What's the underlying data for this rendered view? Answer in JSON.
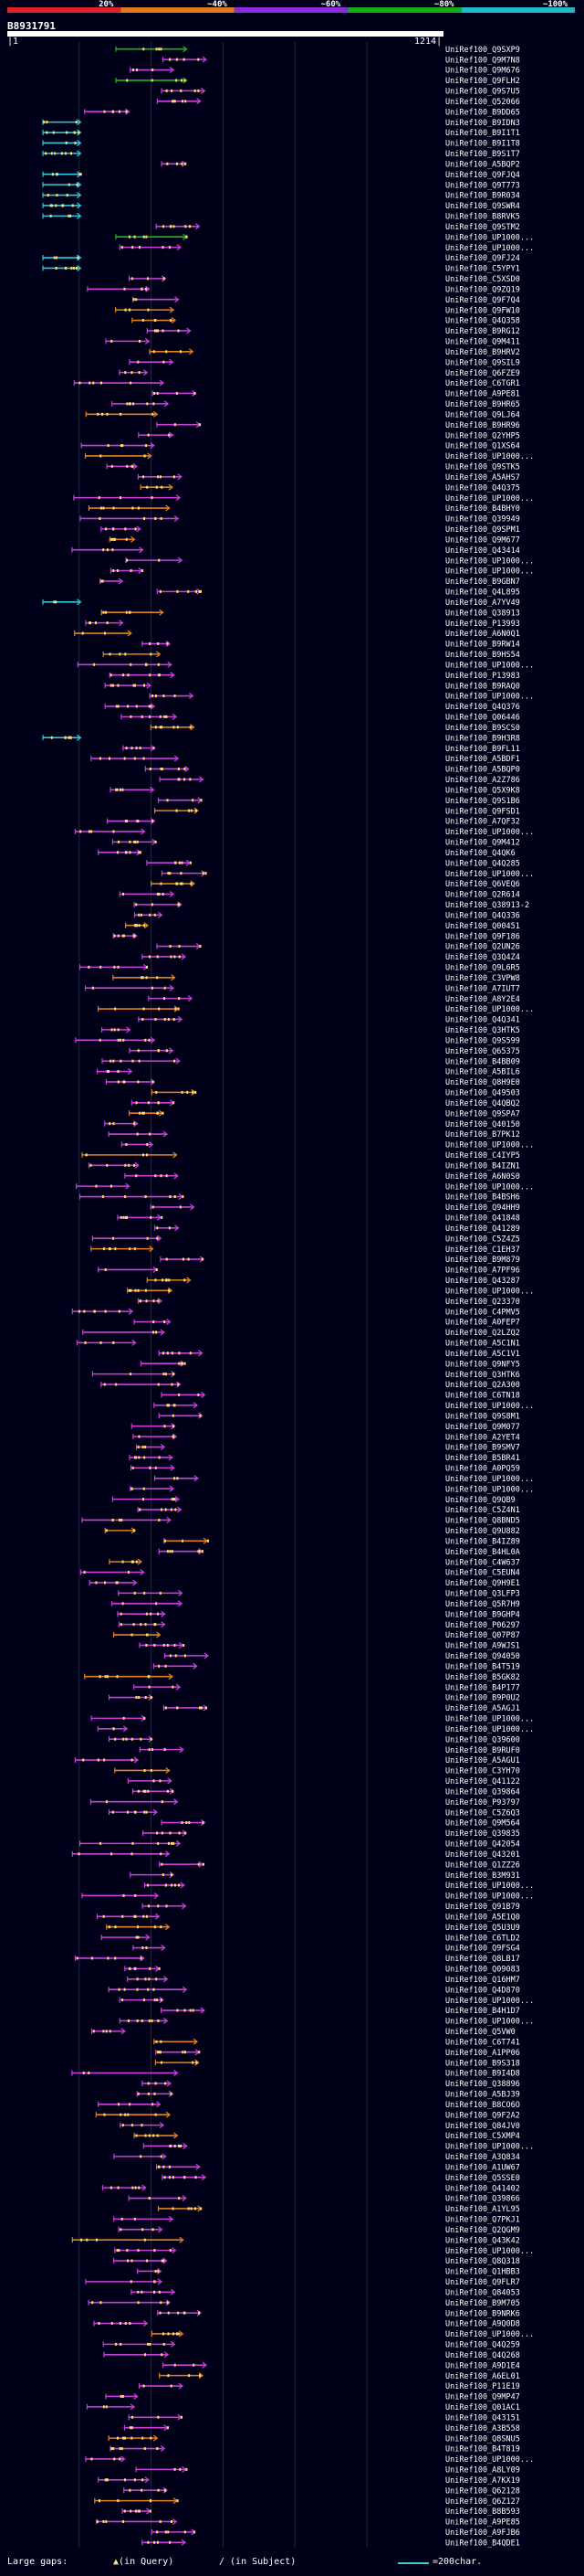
{
  "legend": {
    "ticks": [
      "20%",
      "~40%",
      "~60%",
      "~80%",
      "~100%"
    ],
    "colors": [
      "#e0202a",
      "#e07820",
      "#8a2be2",
      "#18a818",
      "#20b8c8"
    ]
  },
  "query": {
    "id": "B8931791",
    "start": "1",
    "end": "1214"
  },
  "footer": {
    "gap_label": "Large gaps:",
    "gap_query": "(in Query)",
    "gap_subject": "/ (in Subject)",
    "scale_label": "=200char."
  },
  "chart_data": {
    "type": "alignment-overview",
    "title": "B8931791",
    "query_length": 1214,
    "x_range": [
      1,
      1214
    ],
    "hits": [
      "UniRef100_Q9SXP9",
      "UniRef100_Q9M7N8",
      "UniRef100_Q9M676",
      "UniRef100_Q9FLH2",
      "UniRef100_Q9S7U5",
      "UniRef100_Q52066",
      "UniRef100_B9DD65",
      "UniRef100_B9IDN3",
      "UniRef100_B9I1T1",
      "UniRef100_B9I1T8",
      "UniRef100_B9S1T7",
      "UniRef100_A5BQP2",
      "UniRef100_Q9FJQ4",
      "UniRef100_Q9T773",
      "UniRef100_B9R034",
      "UniRef100_Q9SWR4",
      "UniRef100_B8RVK5",
      "UniRef100_Q9STM2",
      "UniRef100_UP1000...",
      "UniRef100_UP1000...",
      "UniRef100_Q9FJ24",
      "UniRef100_C5YPY1",
      "UniRef100_C5XSD0",
      "UniRef100_Q9ZQ19",
      "UniRef100_Q9F7Q4",
      "UniRef100_Q9FW10",
      "UniRef100_Q4Q358",
      "UniRef100_B9RG12",
      "UniRef100_Q9M411",
      "UniRef100_B9HRV2",
      "UniRef100_Q9SIL9",
      "UniRef100_Q6FZE9",
      "UniRef100_C6TGR1",
      "UniRef100_A9PE81",
      "UniRef100_B9HR65",
      "UniRef100_Q9LJ64",
      "UniRef100_B9HR96",
      "UniRef100_Q2YHP5",
      "UniRef100_Q1XS64",
      "UniRef100_UP1000...",
      "UniRef100_Q9STK5",
      "UniRef100_A5AHS7",
      "UniRef100_Q4Q375",
      "UniRef100_UP1000...",
      "UniRef100_B4BHY0",
      "UniRef100_Q39949",
      "UniRef100_Q9SPM1",
      "UniRef100_Q9M677",
      "UniRef100_Q43414",
      "UniRef100_UP1000...",
      "UniRef100_UP1000...",
      "UniRef100_B9GBN7",
      "UniRef100_Q4L895",
      "UniRef100_A7YV49",
      "UniRef100_Q38913",
      "UniRef100_P13993",
      "UniRef100_A6N0Q1",
      "UniRef100_B9RW14",
      "UniRef100_B9HS54",
      "UniRef100_UP1000...",
      "UniRef100_P13983",
      "UniRef100_B9RAQ0",
      "UniRef100_UP1000...",
      "UniRef100_Q4Q376",
      "UniRef100_Q06446",
      "UniRef100_B9SCS0",
      "UniRef100_B9H3R8",
      "UniRef100_B9FL11",
      "UniRef100_A5BDF1",
      "UniRef100_A5BQP0",
      "UniRef100_A2Z786",
      "UniRef100_Q5X9K8",
      "UniRef100_Q9S1B6",
      "UniRef100_Q9FSD1",
      "UniRef100_A7QF32",
      "UniRef100_UP1000...",
      "UniRef100_Q9M412",
      "UniRef100_Q4QK6",
      "UniRef100_Q4Q285",
      "UniRef100_UP1000...",
      "UniRef100_Q6VEQ6",
      "UniRef100_Q2R614",
      "UniRef100_Q38913-2",
      "UniRef100_Q4Q336",
      "UniRef100_Q00451",
      "UniRef100_Q9F186",
      "UniRef100_Q2UN26",
      "UniRef100_Q3Q4Z4",
      "UniRef100_Q9L6R5",
      "UniRef100_C3VPW8",
      "UniRef100_A7IUT7",
      "UniRef100_A8Y2E4",
      "UniRef100_UP1000...",
      "UniRef100_Q4Q341",
      "UniRef100_Q3HTK5",
      "UniRef100_Q9S599",
      "UniRef100_Q65375",
      "UniRef100_B4BB09",
      "UniRef100_A5BIL6",
      "UniRef100_Q8H9E0",
      "UniRef100_Q49503",
      "UniRef100_Q4QBQ2",
      "UniRef100_Q9SPA7",
      "UniRef100_Q40150",
      "UniRef100_B7PK12",
      "UniRef100_UP1000...",
      "UniRef100_C4IYP5",
      "UniRef100_B4IZN1",
      "UniRef100_A6N0S0",
      "UniRef100_UP1000...",
      "UniRef100_B4BSH6",
      "UniRef100_Q94HH9",
      "UniRef100_Q41848",
      "UniRef100_Q41289",
      "UniRef100_C5Z4Z5",
      "UniRef100_C1EH37",
      "UniRef100_B9M879",
      "UniRef100_A7PF96",
      "UniRef100_Q43287",
      "UniRef100_UP1000...",
      "UniRef100_Q23370",
      "UniRef100_C4PMV5",
      "UniRef100_A0FEP7",
      "UniRef100_Q2LZQ2",
      "UniRef100_A5C1N1",
      "UniRef100_A5C1V1",
      "UniRef100_Q9NFY5",
      "UniRef100_Q3HTK6",
      "UniRef100_Q2A300",
      "UniRef100_C6TN18",
      "UniRef100_UP1000...",
      "UniRef100_Q9S8M1",
      "UniRef100_Q9M077",
      "UniRef100_A2YET4",
      "UniRef100_B9SMV7",
      "UniRef100_B5BR41",
      "UniRef100_A0PQ59",
      "UniRef100_UP1000...",
      "UniRef100_UP1000...",
      "UniRef100_Q9QB9",
      "UniRef100_C5Z4N1",
      "UniRef100_Q8BND5",
      "UniRef100_Q9U882",
      "UniRef100_B4IZ89",
      "UniRef100_B4HL0A",
      "UniRef100_C4W637",
      "UniRef100_C5EUN4",
      "UniRef100_Q9H9E1",
      "UniRef100_Q3LFP3",
      "UniRef100_Q5R7H9",
      "UniRef100_B9GHP4",
      "UniRef100_P06297",
      "UniRef100_Q07P87",
      "UniRef100_A9WJS1",
      "UniRef100_Q94050",
      "UniRef100_B4T519",
      "UniRef100_B5GK82",
      "UniRef100_B4P177",
      "UniRef100_B9P0U2",
      "UniRef100_A5AGJ1",
      "UniRef100_UP1000...",
      "UniRef100_UP1000...",
      "UniRef100_Q39600",
      "UniRef100_B9RUF0",
      "UniRef100_A5AGU1",
      "UniRef100_C3YH70",
      "UniRef100_Q41122",
      "UniRef100_Q39864",
      "UniRef100_P93797",
      "UniRef100_C5Z6Q3",
      "UniRef100_Q9M564",
      "UniRef100_Q39835",
      "UniRef100_Q42054",
      "UniRef100_Q43201",
      "UniRef100_Q1ZZ26",
      "UniRef100_B3M931",
      "UniRef100_UP1000...",
      "UniRef100_UP1000...",
      "UniRef100_Q91B79",
      "UniRef100_A5E1Q0",
      "UniRef100_Q5U3U9",
      "UniRef100_C6TLD2",
      "UniRef100_Q9FSG4",
      "UniRef100_Q8LB17",
      "UniRef100_Q09083",
      "UniRef100_Q16HM7",
      "UniRef100_Q4D870",
      "UniRef100_UP1000...",
      "UniRef100_B4H1D7",
      "UniRef100_UP1000...",
      "UniRef100_Q5VW0",
      "UniRef100_C6T741",
      "UniRef100_A1PP06",
      "UniRef100_B9S318",
      "UniRef100_B9I4D8",
      "UniRef100_Q38896",
      "UniRef100_A5BJ39",
      "UniRef100_B8CO6O",
      "UniRef100_Q9F2A2",
      "UniRef100_Q84JV0",
      "UniRef100_C5XMP4",
      "UniRef100_UP1000...",
      "UniRef100_A3Q834",
      "UniRef100_A1UW67",
      "UniRef100_Q5SSE0",
      "UniRef100_Q41402",
      "UniRef100_Q39866",
      "UniRef100_A1YL95",
      "UniRef100_Q7PKJ1",
      "UniRef100_Q2QGM9",
      "UniRef100_Q43K42",
      "UniRef100_UP1000...",
      "UniRef100_Q8Q318",
      "UniRef100_Q1HBB3",
      "UniRef100_Q9FLR7",
      "UniRef100_Q84053",
      "UniRef100_B9M705",
      "UniRef100_B9NRK6",
      "UniRef100_A9Q0D8",
      "UniRef100_UP1000...",
      "UniRef100_Q4Q259",
      "UniRef100_Q4Q268",
      "UniRef100_A9D1E4",
      "UniRef100_A6EL01",
      "UniRef100_P11E19",
      "UniRef100_Q9MP47",
      "UniRef100_Q01AC1",
      "UniRef100_Q43151",
      "UniRef100_A3B558",
      "UniRef100_Q8SNU5",
      "UniRef100_B4T819",
      "UniRef100_UP1000...",
      "UniRef100_A8LY09",
      "UniRef100_A7KX19",
      "UniRef100_Q62128",
      "UniRef100_Q6Z127",
      "UniRef100_B8B593",
      "UniRef100_A9PE85",
      "UniRef100_A9FJB6",
      "UniRef100_B4QDE1"
    ]
  }
}
